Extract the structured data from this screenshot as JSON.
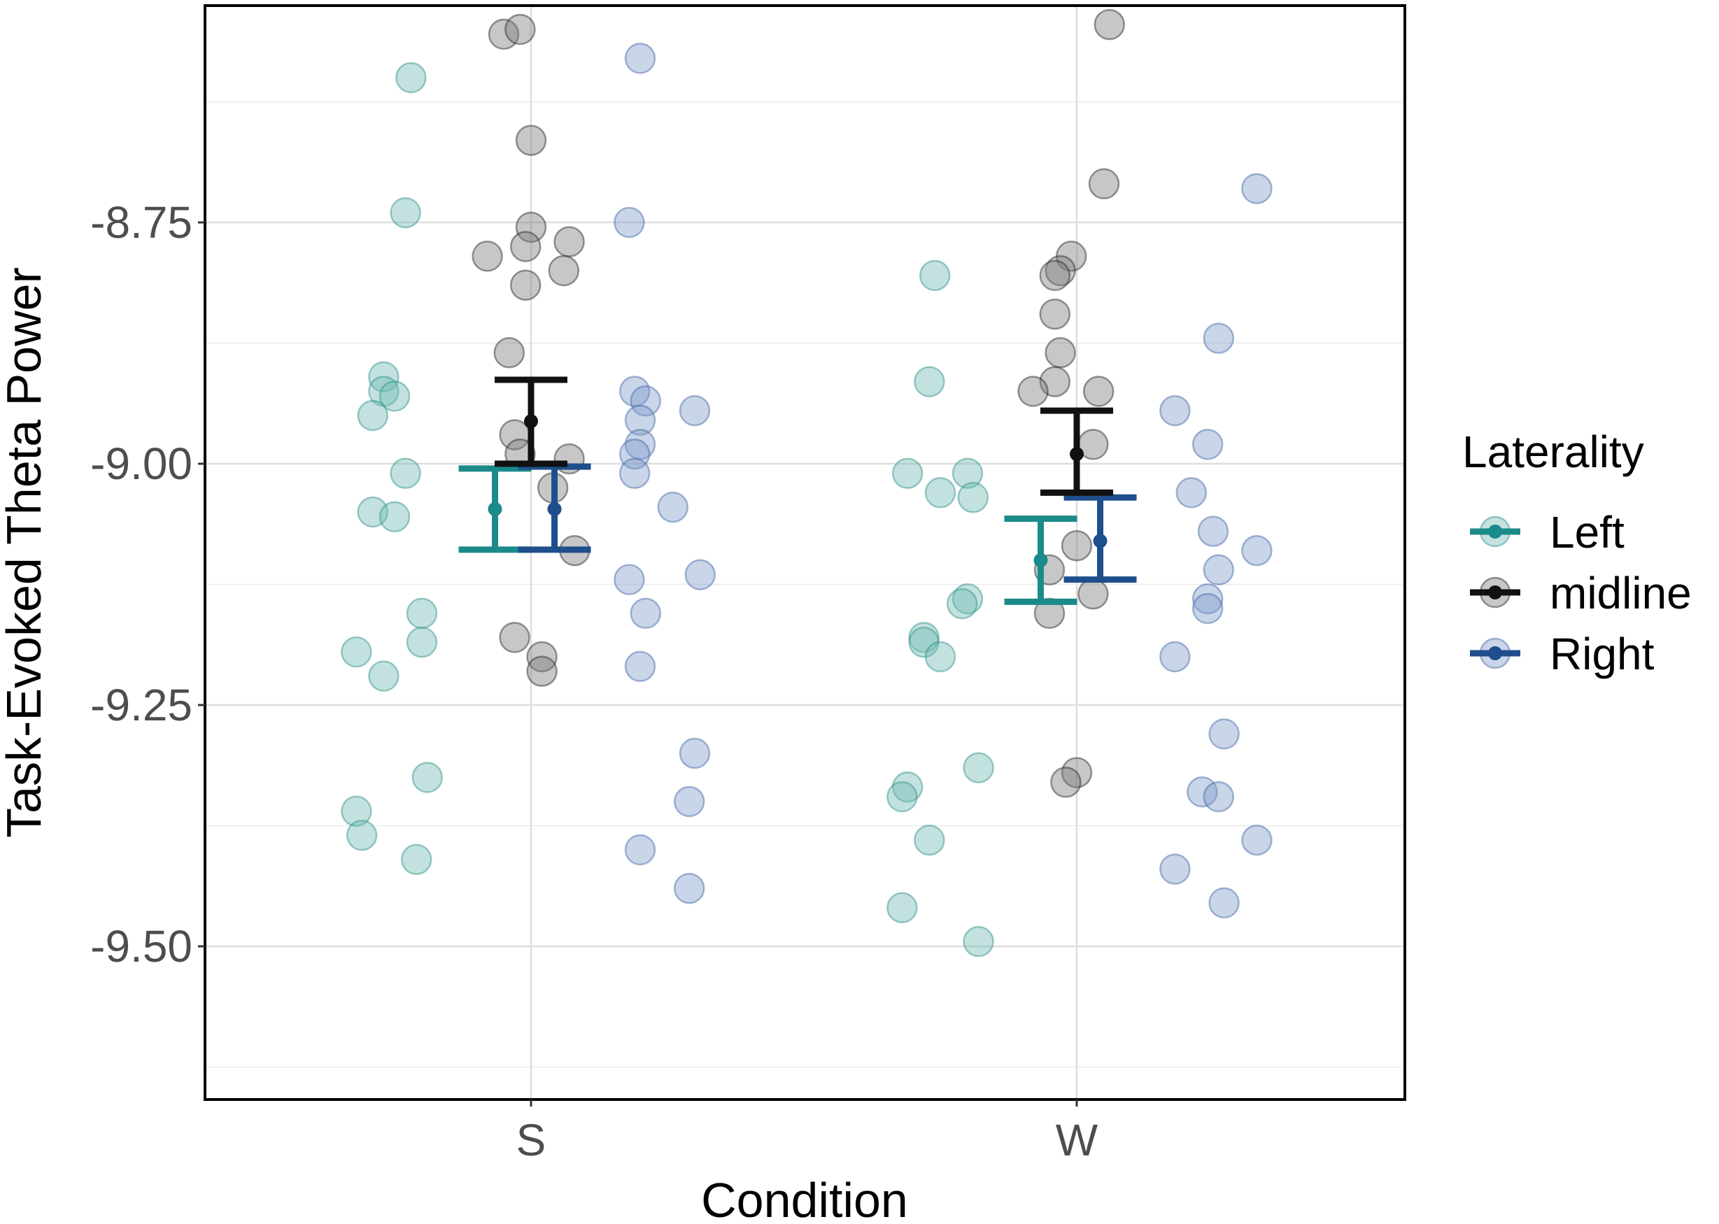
{
  "chart_data": {
    "type": "scatter",
    "title": "",
    "xlabel": "Condition",
    "ylabel": "Task-Evoked Theta Power",
    "categories": [
      "S",
      "W"
    ],
    "ylim": [
      -9.625,
      -8.52
    ],
    "yticks": [
      -8.75,
      -9.0,
      -9.25,
      -9.5
    ],
    "ytick_labels": [
      "-8.75",
      "-9.00",
      "-9.25",
      "-9.50"
    ],
    "grid": true,
    "legend": {
      "title": "Laterality",
      "position": "right",
      "entries": [
        "Left",
        "midline",
        "Right"
      ]
    },
    "series": [
      {
        "name": "Left",
        "color": "#1b8a8a",
        "summary": [
          {
            "category": "S",
            "mean": -9.047,
            "lower": -9.089,
            "upper": -9.005
          },
          {
            "category": "W",
            "mean": -9.1,
            "lower": -9.143,
            "upper": -9.057
          }
        ],
        "points": [
          {
            "category": "S",
            "offset": -0.22,
            "y": -8.6
          },
          {
            "category": "S",
            "offset": -0.23,
            "y": -8.74
          },
          {
            "category": "S",
            "offset": -0.27,
            "y": -8.91
          },
          {
            "category": "S",
            "offset": -0.27,
            "y": -8.925
          },
          {
            "category": "S",
            "offset": -0.25,
            "y": -8.93
          },
          {
            "category": "S",
            "offset": -0.29,
            "y": -8.95
          },
          {
            "category": "S",
            "offset": -0.23,
            "y": -9.01
          },
          {
            "category": "S",
            "offset": -0.29,
            "y": -9.05
          },
          {
            "category": "S",
            "offset": -0.25,
            "y": -9.055
          },
          {
            "category": "S",
            "offset": -0.2,
            "y": -9.155
          },
          {
            "category": "S",
            "offset": -0.32,
            "y": -9.195
          },
          {
            "category": "S",
            "offset": -0.2,
            "y": -9.185
          },
          {
            "category": "S",
            "offset": -0.27,
            "y": -9.22
          },
          {
            "category": "S",
            "offset": -0.19,
            "y": -9.325
          },
          {
            "category": "S",
            "offset": -0.32,
            "y": -9.36
          },
          {
            "category": "S",
            "offset": -0.31,
            "y": -9.385
          },
          {
            "category": "S",
            "offset": -0.21,
            "y": -9.41
          },
          {
            "category": "W",
            "offset": -0.26,
            "y": -8.805
          },
          {
            "category": "W",
            "offset": -0.27,
            "y": -8.915
          },
          {
            "category": "W",
            "offset": -0.31,
            "y": -9.01
          },
          {
            "category": "W",
            "offset": -0.25,
            "y": -9.03
          },
          {
            "category": "W",
            "offset": -0.2,
            "y": -9.01
          },
          {
            "category": "W",
            "offset": -0.19,
            "y": -9.035
          },
          {
            "category": "W",
            "offset": -0.2,
            "y": -9.14
          },
          {
            "category": "W",
            "offset": -0.21,
            "y": -9.145
          },
          {
            "category": "W",
            "offset": -0.28,
            "y": -9.18
          },
          {
            "category": "W",
            "offset": -0.28,
            "y": -9.185
          },
          {
            "category": "W",
            "offset": -0.25,
            "y": -9.2
          },
          {
            "category": "W",
            "offset": -0.18,
            "y": -9.315
          },
          {
            "category": "W",
            "offset": -0.31,
            "y": -9.335
          },
          {
            "category": "W",
            "offset": -0.32,
            "y": -9.345
          },
          {
            "category": "W",
            "offset": -0.27,
            "y": -9.39
          },
          {
            "category": "W",
            "offset": -0.32,
            "y": -9.46
          },
          {
            "category": "W",
            "offset": -0.18,
            "y": -9.495
          }
        ]
      },
      {
        "name": "midline",
        "color": "#111111",
        "summary": [
          {
            "category": "S",
            "mean": -8.956,
            "lower": -9.0,
            "upper": -8.913
          },
          {
            "category": "W",
            "mean": -8.99,
            "lower": -9.03,
            "upper": -8.945
          }
        ],
        "points": [
          {
            "category": "S",
            "offset": -0.05,
            "y": -8.555
          },
          {
            "category": "S",
            "offset": -0.02,
            "y": -8.55
          },
          {
            "category": "S",
            "offset": 0.0,
            "y": -8.665
          },
          {
            "category": "S",
            "offset": 0.0,
            "y": -8.755
          },
          {
            "category": "S",
            "offset": -0.01,
            "y": -8.775
          },
          {
            "category": "S",
            "offset": -0.08,
            "y": -8.785
          },
          {
            "category": "S",
            "offset": 0.07,
            "y": -8.77
          },
          {
            "category": "S",
            "offset": 0.06,
            "y": -8.8
          },
          {
            "category": "S",
            "offset": -0.01,
            "y": -8.815
          },
          {
            "category": "S",
            "offset": -0.04,
            "y": -8.885
          },
          {
            "category": "S",
            "offset": -0.03,
            "y": -8.97
          },
          {
            "category": "S",
            "offset": -0.02,
            "y": -8.99
          },
          {
            "category": "S",
            "offset": 0.07,
            "y": -8.995
          },
          {
            "category": "S",
            "offset": 0.04,
            "y": -9.025
          },
          {
            "category": "S",
            "offset": 0.08,
            "y": -9.09
          },
          {
            "category": "S",
            "offset": -0.03,
            "y": -9.18
          },
          {
            "category": "S",
            "offset": 0.02,
            "y": -9.2
          },
          {
            "category": "S",
            "offset": 0.02,
            "y": -9.215
          },
          {
            "category": "W",
            "offset": 0.06,
            "y": -8.545
          },
          {
            "category": "W",
            "offset": 0.05,
            "y": -8.71
          },
          {
            "category": "W",
            "offset": -0.01,
            "y": -8.785
          },
          {
            "category": "W",
            "offset": -0.03,
            "y": -8.8
          },
          {
            "category": "W",
            "offset": -0.04,
            "y": -8.805
          },
          {
            "category": "W",
            "offset": -0.04,
            "y": -8.845
          },
          {
            "category": "W",
            "offset": -0.03,
            "y": -8.885
          },
          {
            "category": "W",
            "offset": -0.04,
            "y": -8.915
          },
          {
            "category": "W",
            "offset": -0.08,
            "y": -8.925
          },
          {
            "category": "W",
            "offset": 0.04,
            "y": -8.925
          },
          {
            "category": "W",
            "offset": 0.03,
            "y": -8.98
          },
          {
            "category": "W",
            "offset": 0.0,
            "y": -9.085
          },
          {
            "category": "W",
            "offset": -0.05,
            "y": -9.11
          },
          {
            "category": "W",
            "offset": 0.03,
            "y": -9.135
          },
          {
            "category": "W",
            "offset": -0.05,
            "y": -9.155
          },
          {
            "category": "W",
            "offset": 0.0,
            "y": -9.32
          },
          {
            "category": "W",
            "offset": -0.02,
            "y": -9.33
          }
        ]
      },
      {
        "name": "Right",
        "color": "#1f4e8c",
        "summary": [
          {
            "category": "S",
            "mean": -9.047,
            "lower": -9.089,
            "upper": -9.003
          },
          {
            "category": "W",
            "mean": -9.08,
            "lower": -9.12,
            "upper": -9.035
          }
        ],
        "points": [
          {
            "category": "S",
            "offset": 0.2,
            "y": -8.58
          },
          {
            "category": "S",
            "offset": 0.18,
            "y": -8.75
          },
          {
            "category": "S",
            "offset": 0.19,
            "y": -8.925
          },
          {
            "category": "S",
            "offset": 0.21,
            "y": -8.935
          },
          {
            "category": "S",
            "offset": 0.2,
            "y": -8.955
          },
          {
            "category": "S",
            "offset": 0.3,
            "y": -8.945
          },
          {
            "category": "S",
            "offset": 0.2,
            "y": -8.98
          },
          {
            "category": "S",
            "offset": 0.19,
            "y": -8.99
          },
          {
            "category": "S",
            "offset": 0.19,
            "y": -9.01
          },
          {
            "category": "S",
            "offset": 0.26,
            "y": -9.045
          },
          {
            "category": "S",
            "offset": 0.18,
            "y": -9.12
          },
          {
            "category": "S",
            "offset": 0.31,
            "y": -9.115
          },
          {
            "category": "S",
            "offset": 0.21,
            "y": -9.155
          },
          {
            "category": "S",
            "offset": 0.2,
            "y": -9.21
          },
          {
            "category": "S",
            "offset": 0.3,
            "y": -9.3
          },
          {
            "category": "S",
            "offset": 0.29,
            "y": -9.35
          },
          {
            "category": "S",
            "offset": 0.2,
            "y": -9.4
          },
          {
            "category": "S",
            "offset": 0.29,
            "y": -9.44
          },
          {
            "category": "W",
            "offset": 0.33,
            "y": -8.715
          },
          {
            "category": "W",
            "offset": 0.26,
            "y": -8.87
          },
          {
            "category": "W",
            "offset": 0.18,
            "y": -8.945
          },
          {
            "category": "W",
            "offset": 0.24,
            "y": -8.98
          },
          {
            "category": "W",
            "offset": 0.21,
            "y": -9.03
          },
          {
            "category": "W",
            "offset": 0.25,
            "y": -9.07
          },
          {
            "category": "W",
            "offset": 0.26,
            "y": -9.11
          },
          {
            "category": "W",
            "offset": 0.33,
            "y": -9.09
          },
          {
            "category": "W",
            "offset": 0.24,
            "y": -9.14
          },
          {
            "category": "W",
            "offset": 0.24,
            "y": -9.15
          },
          {
            "category": "W",
            "offset": 0.18,
            "y": -9.2
          },
          {
            "category": "W",
            "offset": 0.27,
            "y": -9.28
          },
          {
            "category": "W",
            "offset": 0.23,
            "y": -9.34
          },
          {
            "category": "W",
            "offset": 0.26,
            "y": -9.345
          },
          {
            "category": "W",
            "offset": 0.33,
            "y": -9.39
          },
          {
            "category": "W",
            "offset": 0.18,
            "y": -9.42
          },
          {
            "category": "W",
            "offset": 0.27,
            "y": -9.455
          }
        ]
      }
    ]
  }
}
